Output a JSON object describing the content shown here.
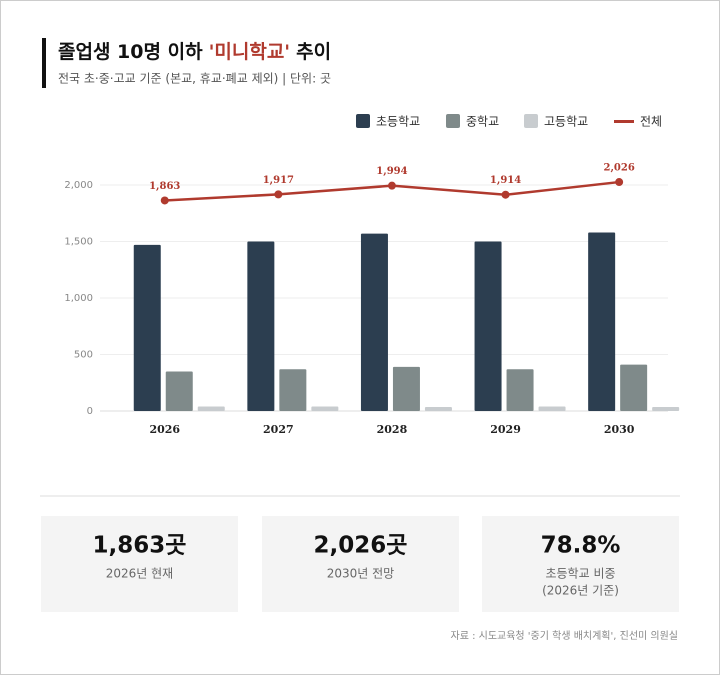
{
  "header": {
    "title": "졸업생 10명 이하",
    "title_highlight": "'미니학교'",
    "title_suffix": "추이",
    "subtitle": "전국 초·중·고교 기준 (본교, 휴교·폐교 제외) | 단위: 곳"
  },
  "chart_data": {
    "type": "bar",
    "categories": [
      "2026",
      "2027",
      "2028",
      "2029",
      "2030"
    ],
    "series": [
      {
        "name": "초등학교",
        "color": "#2c3e50",
        "values": [
          1470,
          1500,
          1570,
          1500,
          1580
        ]
      },
      {
        "name": "중학교",
        "color": "#7f8a8a",
        "values": [
          350,
          370,
          390,
          370,
          410
        ]
      },
      {
        "name": "고등학교",
        "color": "#c8cccf",
        "values": [
          40,
          40,
          35,
          40,
          35
        ]
      },
      {
        "name": "전체",
        "type": "line",
        "color": "#b03a2e",
        "values": [
          1863,
          1917,
          1994,
          1914,
          2026
        ],
        "value_labels": [
          "1,863",
          "1,917",
          "1,994",
          "1,914",
          "2,026"
        ]
      }
    ],
    "ylim": [
      0,
      2200
    ],
    "yticks": [
      0,
      500,
      {
        "value": 1000,
        "label": "1,000"
      },
      {
        "value": 1500,
        "label": "1,500"
      },
      {
        "value": 2000,
        "label": "2,000"
      }
    ],
    "grid": true,
    "legend": "top-right"
  },
  "cards": [
    {
      "value": "1,863곳",
      "label": [
        "2026년 현재"
      ]
    },
    {
      "value": "2,026곳",
      "label": [
        "2030년 전망"
      ]
    },
    {
      "value": "78.8%",
      "label": [
        "초등학교 비중",
        "(2026년 기준)"
      ]
    }
  ],
  "source": "자료 : 시도교육청 '중기 학생 배치계획', 진선미 의원실"
}
